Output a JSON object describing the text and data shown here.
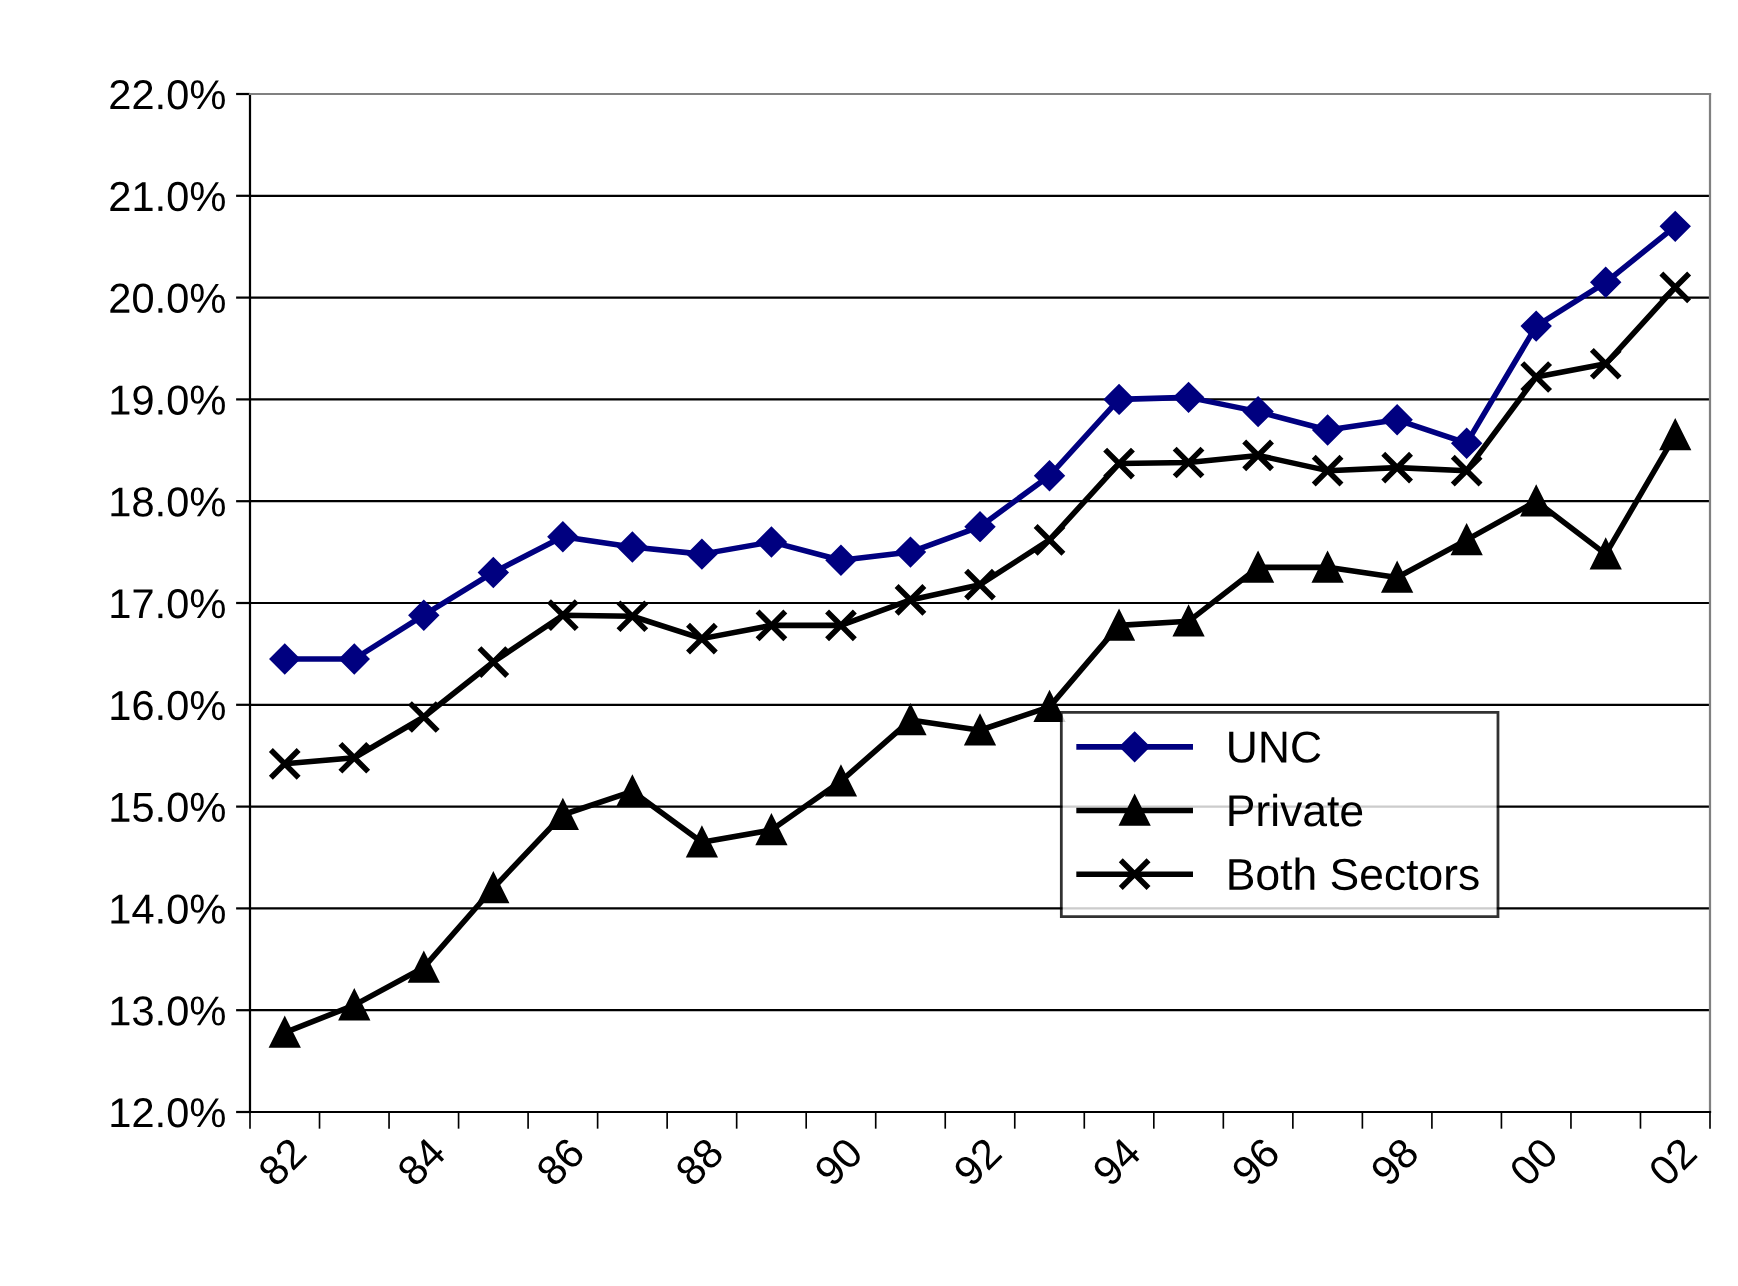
{
  "chart_data": {
    "type": "line",
    "categories": [
      "82",
      null,
      "84",
      null,
      "86",
      null,
      "88",
      null,
      "90",
      null,
      "92",
      null,
      "94",
      null,
      "96",
      null,
      "98",
      null,
      "00",
      null,
      "02"
    ],
    "series": [
      {
        "name": "UNC",
        "color": "#000080",
        "marker": "diamond",
        "values": [
          16.45,
          16.45,
          16.88,
          17.3,
          17.65,
          17.55,
          17.48,
          17.6,
          17.42,
          17.5,
          17.75,
          18.25,
          19.0,
          19.02,
          18.88,
          18.7,
          18.8,
          18.57,
          19.72,
          20.15,
          20.7
        ]
      },
      {
        "name": "Private",
        "color": "#000000",
        "marker": "triangle",
        "values": [
          12.78,
          13.05,
          13.42,
          14.2,
          14.92,
          15.15,
          14.65,
          14.77,
          15.25,
          15.85,
          15.75,
          15.98,
          16.78,
          16.82,
          17.35,
          17.35,
          17.25,
          17.62,
          18.0,
          17.48,
          18.65
        ]
      },
      {
        "name": "Both Sectors",
        "color": "#000000",
        "marker": "cross",
        "values": [
          15.42,
          15.48,
          15.88,
          16.42,
          16.88,
          16.87,
          16.65,
          16.78,
          16.78,
          17.03,
          17.18,
          17.62,
          18.37,
          18.38,
          18.45,
          18.3,
          18.33,
          18.3,
          19.22,
          19.35,
          20.1
        ]
      }
    ],
    "ylim": [
      12,
      22
    ],
    "yticks": [
      {
        "value": 12,
        "label": "12.0%"
      },
      {
        "value": 13,
        "label": "13.0%"
      },
      {
        "value": 14,
        "label": "14.0%"
      },
      {
        "value": 15,
        "label": "15.0%"
      },
      {
        "value": 16,
        "label": "16.0%"
      },
      {
        "value": 17,
        "label": "17.0%"
      },
      {
        "value": 18,
        "label": "18.0%"
      },
      {
        "value": 19,
        "label": "19.0%"
      },
      {
        "value": 20,
        "label": "20.0%"
      },
      {
        "value": 21,
        "label": "21.0%"
      },
      {
        "value": 22,
        "label": "22.0%"
      }
    ],
    "grid": "y",
    "legend": "bottom right",
    "line_style": "solid"
  }
}
